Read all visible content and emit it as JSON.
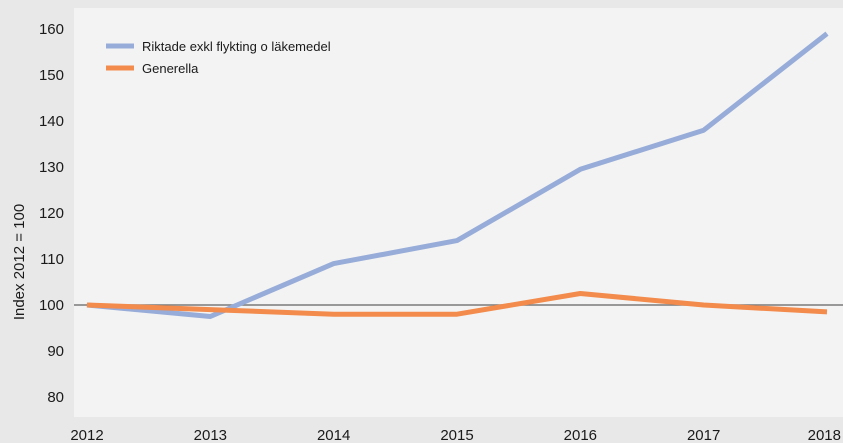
{
  "chart_data": {
    "type": "line",
    "title": "",
    "xlabel": "",
    "ylabel": "Index 2012 = 100",
    "x": [
      "2012",
      "2013",
      "2014",
      "2015",
      "2016",
      "2017",
      "2018"
    ],
    "yticks": [
      80,
      90,
      100,
      110,
      120,
      130,
      140,
      150,
      160
    ],
    "ylim": [
      75,
      165
    ],
    "reference_line": 100,
    "grid": false,
    "legend_position": "top-left",
    "series": [
      {
        "name": "Riktade exkl flykting o läkemedel",
        "color": "#97acd8",
        "values": [
          100,
          97.5,
          109,
          114,
          129.5,
          138,
          159
        ]
      },
      {
        "name": "Generella",
        "color": "#f38b4c",
        "values": [
          100,
          99,
          98,
          98,
          102.5,
          100,
          98.5
        ]
      }
    ],
    "colors": {
      "background": "#e8e8e8",
      "plot_background": "#f3f3f3",
      "reference_line": "#7a7a7a",
      "text": "#1a1a1a"
    }
  }
}
